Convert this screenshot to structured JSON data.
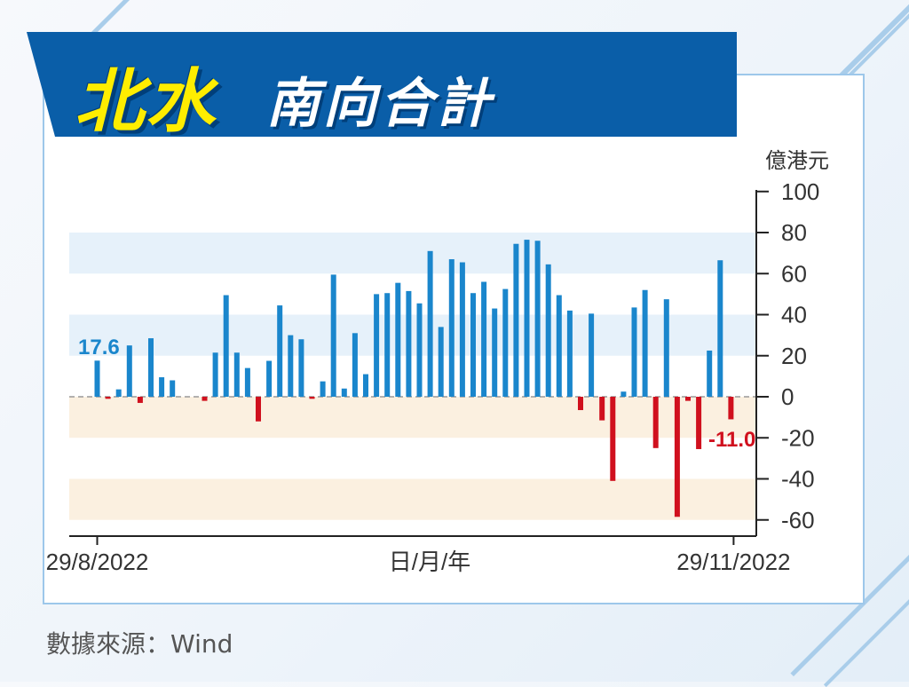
{
  "title": {
    "highlight": "北水",
    "main": "南向合計"
  },
  "source": "數據來源：Wind",
  "colors": {
    "positive": "#1a86cc",
    "negative": "#d0101e",
    "banner": "#0a5ea8",
    "highlight": "#ffed00"
  },
  "chart_data": {
    "type": "bar",
    "y_unit": "億港元",
    "xlabel": "日/月/年",
    "x_tick_labels": [
      "29/8/2022",
      "29/11/2022"
    ],
    "ylim": [
      -60,
      100
    ],
    "y_ticks": [
      100,
      80,
      60,
      40,
      20,
      0,
      -20,
      -40,
      -60
    ],
    "annotations": {
      "first": "17.6",
      "last": "-11.0"
    },
    "bands": [
      {
        "from": 60,
        "to": 80,
        "kind": "positive"
      },
      {
        "from": 20,
        "to": 40,
        "kind": "positive"
      },
      {
        "from": -20,
        "to": 0,
        "kind": "negative"
      },
      {
        "from": -60,
        "to": -40,
        "kind": "negative"
      }
    ],
    "values": [
      17.6,
      -1,
      3.6,
      25,
      -3,
      28.5,
      9.5,
      8,
      0,
      0,
      -2,
      21.5,
      49.5,
      21.5,
      14,
      -12,
      17.5,
      44.5,
      30,
      28,
      -1,
      7.5,
      59.5,
      4,
      31,
      11,
      50,
      50.5,
      55.5,
      51.5,
      45.5,
      71,
      34,
      67,
      65.5,
      50.5,
      56,
      43,
      52.5,
      74.5,
      76.5,
      76,
      64.5,
      49.5,
      42,
      -6.5,
      40.5,
      -11.5,
      -41,
      2.5,
      43.5,
      52,
      -25,
      47.5,
      -58.5,
      -2,
      -25.5,
      22.5,
      66.5,
      -11
    ]
  }
}
